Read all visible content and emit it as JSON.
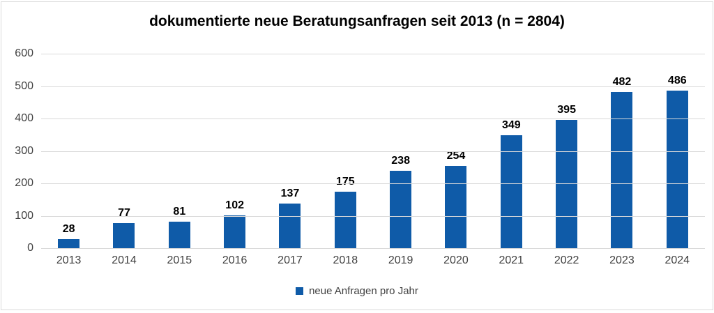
{
  "chart_data": {
    "type": "bar",
    "title": "dokumentierte neue Beratungsanfragen seit 2013 (n = 2804)",
    "categories": [
      "2013",
      "2014",
      "2015",
      "2016",
      "2017",
      "2018",
      "2019",
      "2020",
      "2021",
      "2022",
      "2023",
      "2024"
    ],
    "series": [
      {
        "name": "neue Anfragen pro Jahr",
        "values": [
          28,
          77,
          81,
          102,
          137,
          175,
          238,
          254,
          349,
          395,
          482,
          486
        ]
      }
    ],
    "xlabel": "",
    "ylabel": "",
    "ylim": [
      0,
      600
    ],
    "yticks": [
      0,
      100,
      200,
      300,
      400,
      500,
      600
    ],
    "grid": true,
    "data_labels": true,
    "legend_position": "bottom"
  },
  "colors": {
    "bar": "#0f5ba8",
    "gridline": "#d9d9d9",
    "axis_text": "#404040",
    "data_label_text": "#000000",
    "chart_border": "#d9d9d9",
    "background": "#ffffff"
  }
}
